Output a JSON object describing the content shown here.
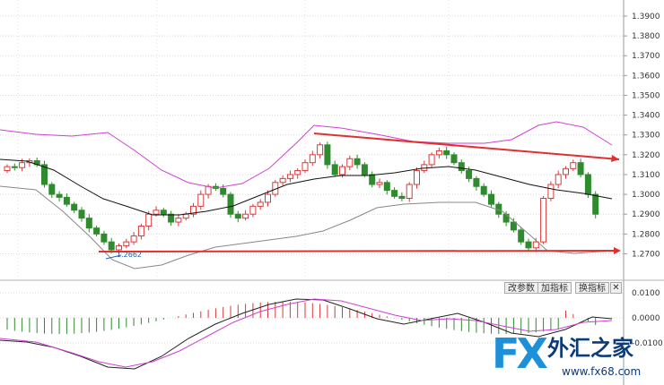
{
  "y_axis": {
    "ticks": [
      "1.3900",
      "1.3800",
      "1.3700",
      "1.3600",
      "1.3500",
      "1.3400",
      "1.3300",
      "1.3200",
      "1.3100",
      "1.3000",
      "1.2900",
      "1.2800",
      "1.2700"
    ]
  },
  "macd_axis": {
    "ticks": [
      "0.0100",
      "0.0000",
      "-0.0100"
    ]
  },
  "annotation": {
    "low_label": "1.2662"
  },
  "toolbar": {
    "modify_params": "改参数",
    "add_indicator": "加指标",
    "switch_indicator": "换指标",
    "close": "✕"
  },
  "watermark": {
    "brand": "FX",
    "name": "外汇之家",
    "url": "www.fx68.com"
  },
  "colors": {
    "up": "#d93a3a",
    "down": "#2e8b2e",
    "trend": "#e03030",
    "bollinger_outer": "#d040d0",
    "bollinger_mid": "#111111",
    "bollinger_lower": "#888888"
  }
}
